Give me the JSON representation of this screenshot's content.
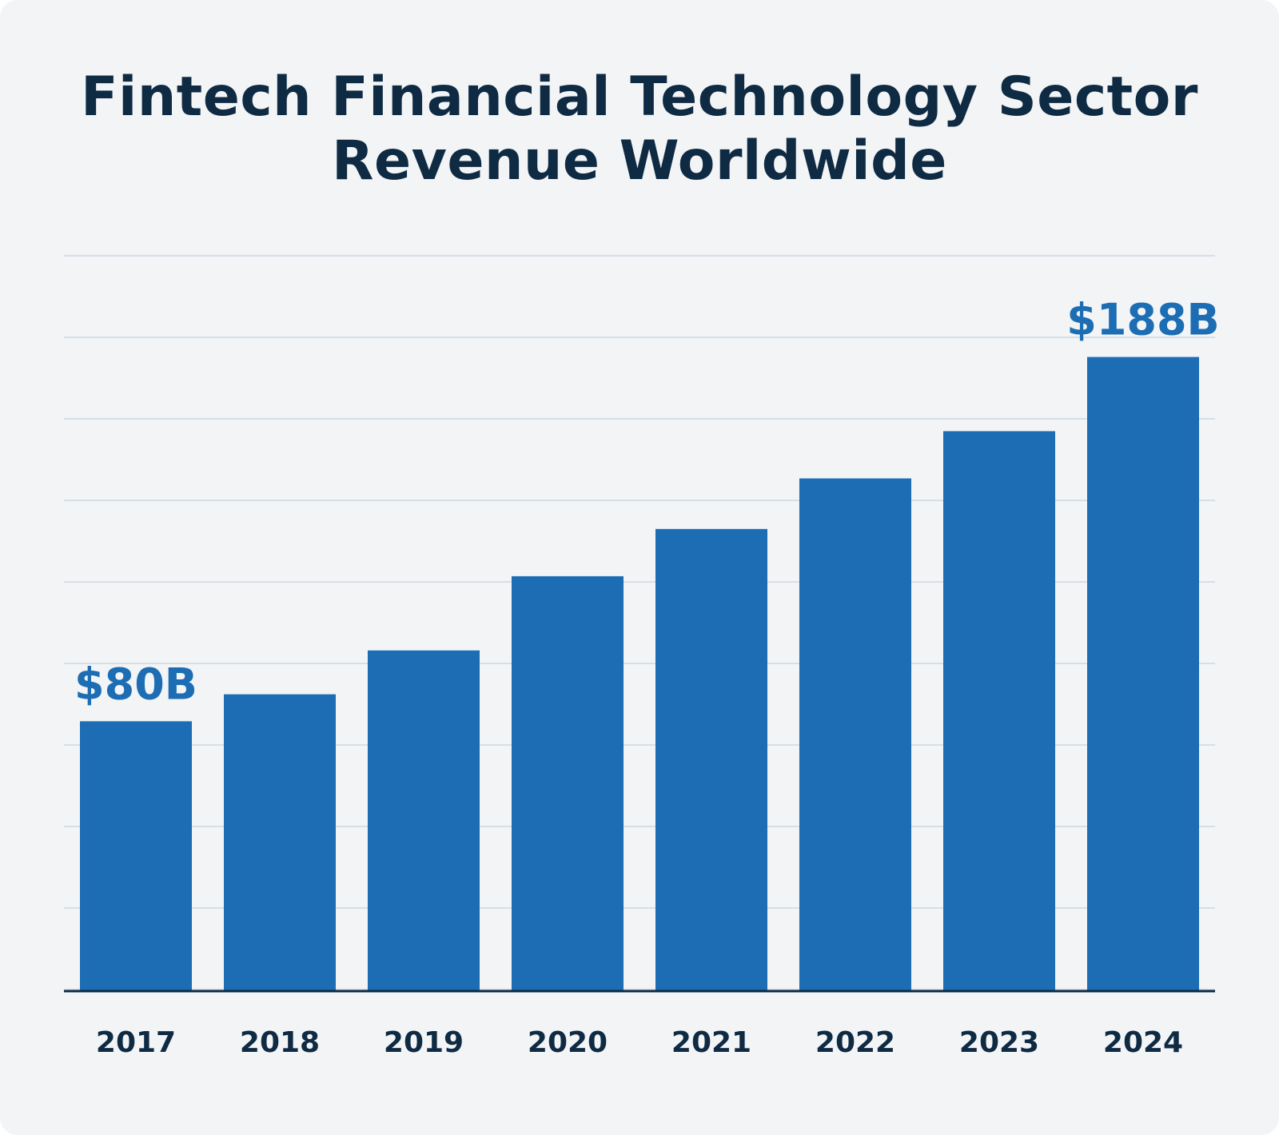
{
  "header": {
    "title_line1": "Fintech Financial Technology Sector",
    "title_line2": "Revenue Worldwide"
  },
  "colors": {
    "background": "#f2f4f6",
    "bar": "#1c6db3",
    "title": "#0f2a43",
    "gridline": "#d6dfe6",
    "axis": "#0f2a43",
    "data_label": "#1c6db3"
  },
  "chart_data": {
    "type": "bar",
    "title": "Fintech Financial Technology Sector Revenue Worldwide",
    "xlabel": "",
    "ylabel": "",
    "categories": [
      "2017",
      "2018",
      "2019",
      "2020",
      "2021",
      "2022",
      "2023",
      "2024"
    ],
    "values": [
      80,
      88,
      101,
      123,
      137,
      152,
      166,
      188
    ],
    "data_labels": [
      {
        "category": "2017",
        "text": "$80B"
      },
      {
        "category": "2024",
        "text": "$188B"
      }
    ],
    "unit": "billion USD",
    "ylim": [
      0,
      218
    ],
    "y_axis_labels_shown": false,
    "grid": true,
    "legend": "none"
  }
}
